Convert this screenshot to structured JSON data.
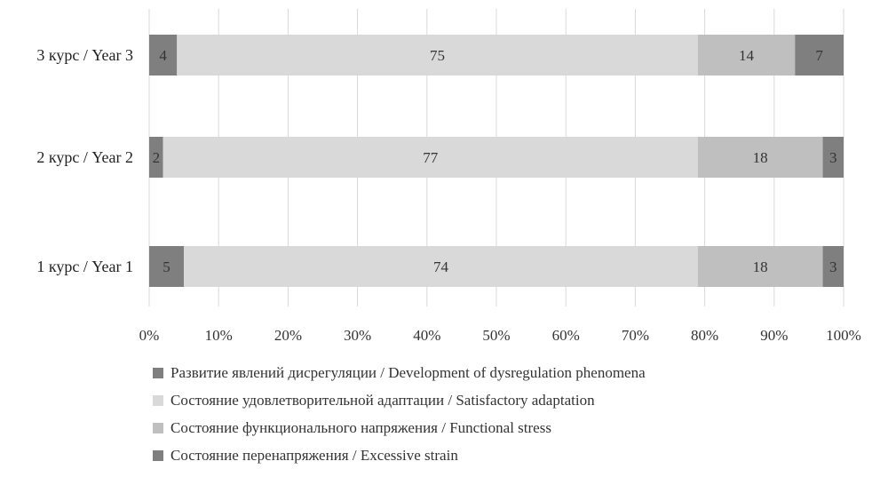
{
  "chart_data": {
    "type": "bar",
    "orientation": "horizontal",
    "stacked": true,
    "percent_stacked": true,
    "categories": [
      "1 курс / Year 1",
      "2 курс / Year 2",
      "3 курс / Year 3"
    ],
    "series": [
      {
        "name": "Развитие явлений дисрегуляции / Development of dysregulation phenomena",
        "values": [
          5,
          2,
          4
        ],
        "color": "#7f7f7f"
      },
      {
        "name": "Состояние удовлетворительной адаптации / Satisfactory adaptation",
        "values": [
          74,
          77,
          75
        ],
        "color": "#d9d9d9"
      },
      {
        "name": "Состояние функционального напряжения / Functional stress",
        "values": [
          18,
          18,
          14
        ],
        "color": "#bfbfbf"
      },
      {
        "name": "Состояние перенапряжения / Excessive strain",
        "values": [
          3,
          3,
          7
        ],
        "color": "#7f7f7f"
      }
    ],
    "xticks": [
      "0%",
      "10%",
      "20%",
      "30%",
      "40%",
      "50%",
      "60%",
      "70%",
      "80%",
      "90%",
      "100%"
    ],
    "xlim": [
      0,
      100
    ],
    "grid": "vertical",
    "legend_position": "bottom",
    "title": "",
    "xlabel": "",
    "ylabel": ""
  }
}
